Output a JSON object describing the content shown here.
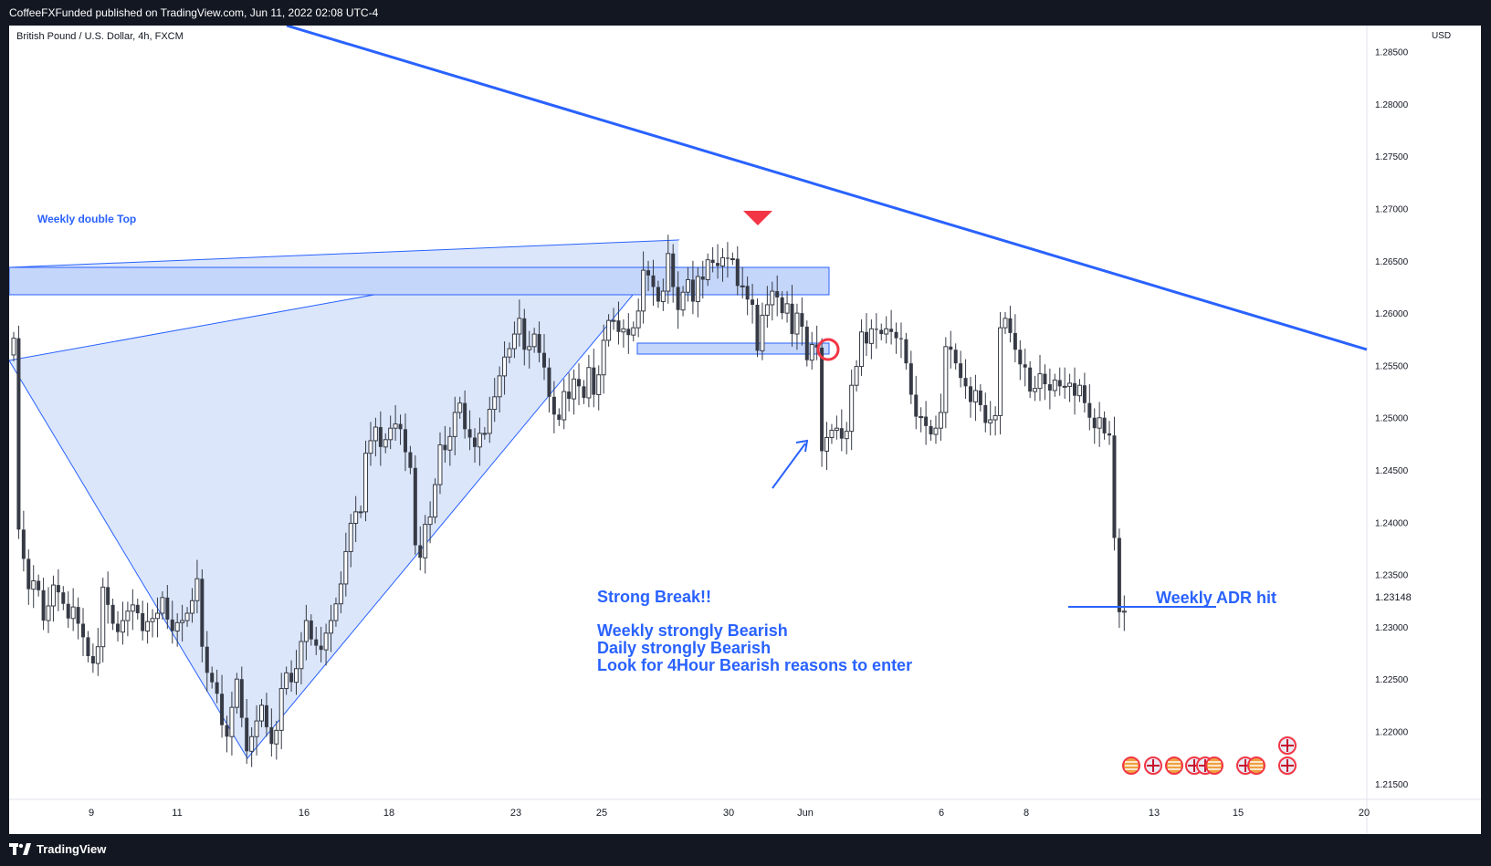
{
  "header": {
    "publisher_line": "CoffeeFXFunded published on TradingView.com, Jun 11, 2022 02:08 UTC-4"
  },
  "chart_header": {
    "symbol_line": "British Pound / U.S. Dollar, 4h, FXCM",
    "currency": "USD"
  },
  "footer": {
    "brand": "TradingView"
  },
  "annotations": {
    "double_top": "Weekly double Top",
    "strong_break": "Strong Break!!",
    "weekly_bearish": "Weekly strongly Bearish",
    "daily_bearish": "Daily strongly Bearish",
    "look_for": "Look for 4Hour Bearish reasons to enter",
    "adr_hit": "Weekly ADR hit"
  },
  "colors": {
    "annotation_blue": "#2962ff",
    "zone_fill": "#c5d6fb",
    "triangle_fill": "#dbe6fb",
    "candle": "#363a45",
    "marker_red": "#f23645",
    "bg": "#131722"
  },
  "chart_data": {
    "type": "candlestick",
    "y_ticks": [
      "1.28500",
      "1.28000",
      "1.27500",
      "1.27000",
      "1.26500",
      "1.26000",
      "1.25500",
      "1.25000",
      "1.24500",
      "1.24000",
      "1.23500",
      "1.23000",
      "1.22500",
      "1.22000",
      "1.21500"
    ],
    "last_price": "1.23148",
    "x_ticks": [
      "9",
      "11",
      "16",
      "18",
      "23",
      "25",
      "30",
      "Jun",
      "6",
      "8",
      "13",
      "15",
      "20"
    ],
    "ylim": [
      1.2135,
      1.2875
    ],
    "series_close": [
      1.2576,
      1.2393,
      1.2365,
      1.2336,
      1.2344,
      1.2335,
      1.2306,
      1.232,
      1.234,
      1.2333,
      1.2322,
      1.2308,
      1.2319,
      1.2303,
      1.229,
      1.2272,
      1.2265,
      1.2281,
      1.2338,
      1.2321,
      1.2303,
      1.2295,
      1.2306,
      1.2315,
      1.2321,
      1.2313,
      1.2296,
      1.2305,
      1.2308,
      1.2313,
      1.2328,
      1.2307,
      1.2296,
      1.2304,
      1.2306,
      1.2313,
      1.2325,
      1.2346,
      1.2281,
      1.2256,
      1.2247,
      1.2236,
      1.2206,
      1.2195,
      1.2223,
      1.225,
      1.2213,
      1.2181,
      1.2195,
      1.221,
      1.2225,
      1.2204,
      1.2188,
      1.2201,
      1.2241,
      1.2256,
      1.2247,
      1.226,
      1.2286,
      1.2306,
      1.2288,
      1.2282,
      1.2278,
      1.2294,
      1.2306,
      1.2322,
      1.2341,
      1.2372,
      1.2399,
      1.241,
      1.241,
      1.2466,
      1.2478,
      1.2491,
      1.2472,
      1.2479,
      1.249,
      1.2494,
      1.2489,
      1.2467,
      1.2452,
      1.2378,
      1.2366,
      1.2398,
      1.2405,
      1.2436,
      1.2474,
      1.2469,
      1.2482,
      1.2505,
      1.2514,
      1.2489,
      1.2481,
      1.2472,
      1.2485,
      1.2485,
      1.2508,
      1.252,
      1.254,
      1.2558,
      1.2566,
      1.258,
      1.2595,
      1.2565,
      1.2568,
      1.258,
      1.2562,
      1.2548,
      1.252,
      1.2503,
      1.2498,
      1.2525,
      1.2518,
      1.2537,
      1.253,
      1.2519,
      1.2548,
      1.2522,
      1.2541,
      1.2574,
      1.2593,
      1.2593,
      1.2582,
      1.2585,
      1.2579,
      1.2586,
      1.2602,
      1.2641,
      1.2636,
      1.2625,
      1.2611,
      1.2621,
      1.2657,
      1.2625,
      1.2603,
      1.262,
      1.2632,
      1.2611,
      1.2635,
      1.2632,
      1.2651,
      1.2648,
      1.2645,
      1.2653,
      1.2652,
      1.2652,
      1.2626,
      1.2626,
      1.2613,
      1.2608,
      1.2564,
      1.2598,
      1.2608,
      1.2621,
      1.2615,
      1.26,
      1.2609,
      1.258,
      1.26,
      1.2587,
      1.2555,
      1.257,
      1.2567,
      1.2468,
      1.2481,
      1.2488,
      1.249,
      1.248,
      1.2487,
      1.2531,
      1.2549,
      1.2582,
      1.2571,
      1.2585,
      1.2584,
      1.258,
      1.2585,
      1.2582,
      1.2576,
      1.2575,
      1.2552,
      1.2522,
      1.2501,
      1.2501,
      1.2492,
      1.2484,
      1.249,
      1.2505,
      1.2568,
      1.2565,
      1.2552,
      1.2538,
      1.253,
      1.2515,
      1.2526,
      1.2512,
      1.2495,
      1.2498,
      1.2502,
      1.2586,
      1.2595,
      1.2581,
      1.2565,
      1.2551,
      1.2548,
      1.2525,
      1.2528,
      1.2542,
      1.2532,
      1.2526,
      1.2536,
      1.253,
      1.253,
      1.2533,
      1.2521,
      1.2531,
      1.2514,
      1.25,
      1.249,
      1.25,
      1.2485,
      1.2483,
      1.2385,
      1.2314,
      1.2315
    ]
  }
}
